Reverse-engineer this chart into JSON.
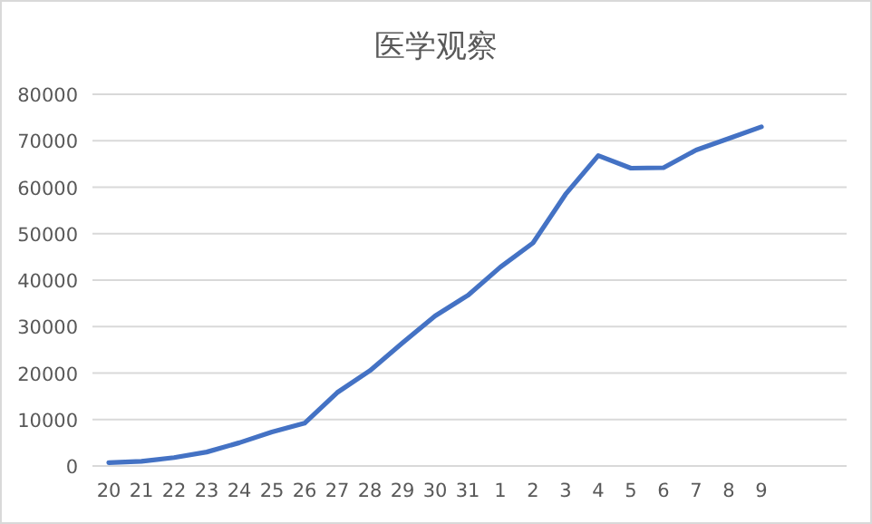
{
  "chart_data": {
    "type": "line",
    "title": "医学观察",
    "categories": [
      "20",
      "21",
      "22",
      "23",
      "24",
      "25",
      "26",
      "27",
      "28",
      "29",
      "30",
      "31",
      "1",
      "2",
      "3",
      "4",
      "5",
      "6",
      "7",
      "8",
      "9"
    ],
    "series": [
      {
        "color": "#4472c4",
        "values": [
          700,
          1000,
          1800,
          3000,
          5000,
          7300,
          9200,
          15800,
          20500,
          26500,
          32300,
          36700,
          42800,
          48000,
          58500,
          66800,
          64100,
          64200,
          68000,
          70500,
          73000
        ]
      }
    ],
    "ylim": [
      0,
      80000
    ],
    "yticks": [
      0,
      10000,
      20000,
      30000,
      40000,
      50000,
      60000,
      70000,
      80000
    ],
    "grid": "y",
    "marker": "none",
    "line_style": "solid"
  }
}
